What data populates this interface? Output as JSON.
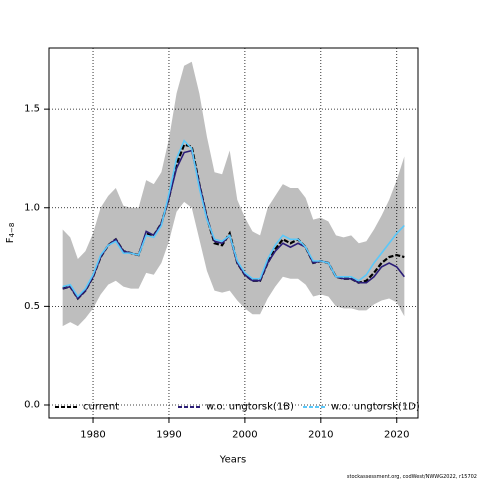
{
  "chart_data": {
    "type": "line",
    "xlabel": "Years",
    "ylabel": {
      "main": "F",
      "sub": "4−8"
    },
    "credit": "stockassessment.org, codWest/NWWG2022, r15702",
    "x": [
      1976,
      1977,
      1978,
      1979,
      1980,
      1981,
      1982,
      1983,
      1984,
      1985,
      1986,
      1987,
      1988,
      1989,
      1990,
      1991,
      1992,
      1993,
      1994,
      1995,
      1996,
      1997,
      1998,
      1999,
      2000,
      2001,
      2002,
      2003,
      2004,
      2005,
      2006,
      2007,
      2008,
      2009,
      2010,
      2011,
      2012,
      2013,
      2014,
      2015,
      2016,
      2017,
      2018,
      2019,
      2020,
      2021
    ],
    "band": {
      "color": "#bebebe",
      "upper": [
        0.89,
        0.85,
        0.74,
        0.78,
        0.87,
        1.0,
        1.06,
        1.1,
        1.01,
        1.0,
        1.0,
        1.14,
        1.12,
        1.18,
        1.35,
        1.58,
        1.72,
        1.74,
        1.58,
        1.36,
        1.18,
        1.17,
        1.29,
        1.04,
        0.95,
        0.88,
        0.86,
        1.0,
        1.06,
        1.12,
        1.1,
        1.1,
        1.05,
        0.94,
        0.95,
        0.93,
        0.86,
        0.85,
        0.86,
        0.82,
        0.83,
        0.89,
        0.96,
        1.04,
        1.14,
        1.26
      ],
      "lower": [
        0.4,
        0.42,
        0.4,
        0.44,
        0.49,
        0.56,
        0.61,
        0.63,
        0.6,
        0.59,
        0.59,
        0.67,
        0.66,
        0.72,
        0.83,
        0.98,
        1.03,
        1.0,
        0.84,
        0.68,
        0.58,
        0.57,
        0.58,
        0.53,
        0.49,
        0.46,
        0.46,
        0.54,
        0.6,
        0.65,
        0.64,
        0.64,
        0.61,
        0.55,
        0.56,
        0.55,
        0.5,
        0.49,
        0.49,
        0.48,
        0.48,
        0.51,
        0.53,
        0.54,
        0.52,
        0.45
      ]
    },
    "series": [
      {
        "name": "current",
        "color": "#000000",
        "dash": true,
        "values": [
          0.59,
          0.6,
          0.54,
          0.58,
          0.65,
          0.75,
          0.81,
          0.84,
          0.78,
          0.77,
          0.76,
          0.87,
          0.86,
          0.92,
          1.05,
          1.22,
          1.32,
          1.31,
          1.12,
          0.95,
          0.82,
          0.81,
          0.87,
          0.72,
          0.66,
          0.63,
          0.63,
          0.72,
          0.79,
          0.84,
          0.82,
          0.84,
          0.8,
          0.72,
          0.73,
          0.72,
          0.65,
          0.64,
          0.64,
          0.62,
          0.63,
          0.67,
          0.72,
          0.75,
          0.76,
          0.75
        ]
      },
      {
        "name": "w.o. ungtorsk(1B)",
        "color": "#2b1d78",
        "dash": false,
        "values": [
          0.59,
          0.6,
          0.54,
          0.58,
          0.65,
          0.75,
          0.81,
          0.84,
          0.78,
          0.77,
          0.76,
          0.88,
          0.86,
          0.92,
          1.05,
          1.2,
          1.28,
          1.29,
          1.12,
          0.95,
          0.83,
          0.82,
          0.86,
          0.72,
          0.66,
          0.63,
          0.63,
          0.72,
          0.78,
          0.82,
          0.8,
          0.82,
          0.8,
          0.72,
          0.73,
          0.72,
          0.65,
          0.64,
          0.64,
          0.62,
          0.62,
          0.65,
          0.7,
          0.72,
          0.7,
          0.65
        ]
      },
      {
        "name": "w.o. ungtorsk(1D)",
        "color": "#5ac8fa",
        "dash": false,
        "values": [
          0.6,
          0.61,
          0.55,
          0.59,
          0.66,
          0.76,
          0.81,
          0.83,
          0.77,
          0.77,
          0.76,
          0.86,
          0.85,
          0.91,
          1.07,
          1.25,
          1.34,
          1.3,
          1.1,
          0.94,
          0.84,
          0.83,
          0.86,
          0.73,
          0.67,
          0.64,
          0.64,
          0.74,
          0.81,
          0.86,
          0.84,
          0.84,
          0.8,
          0.73,
          0.73,
          0.72,
          0.65,
          0.65,
          0.65,
          0.63,
          0.66,
          0.72,
          0.77,
          0.82,
          0.87,
          0.91
        ]
      }
    ],
    "xlim": [
      1974.2,
      2022.8
    ],
    "ylim": [
      -0.066,
      1.81
    ],
    "xticks": [
      1980,
      1990,
      2000,
      2010,
      2020
    ],
    "yticks": [
      {
        "value": 0,
        "label": "0.0"
      },
      0.5,
      {
        "value": 1,
        "label": "1.0"
      },
      1.5
    ],
    "grid": true,
    "legend": "bottom"
  }
}
